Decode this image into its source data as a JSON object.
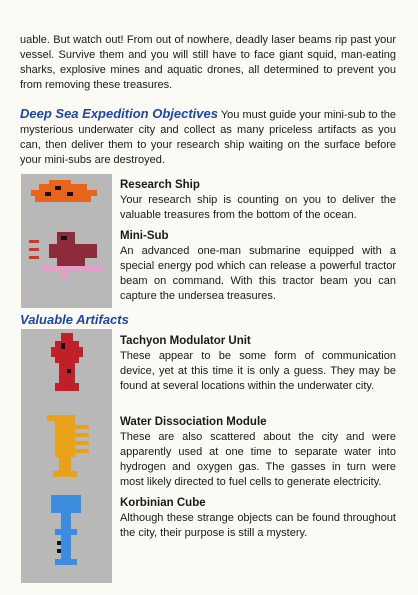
{
  "intro_text": "uable. But watch out! From out of nowhere, deadly laser beams rip past your vessel. Survive them and you will still have to face giant squid, man-eating sharks, explosive mines and aquatic drones, all determined to prevent you from removing these treasures.",
  "objectives": {
    "heading": "Deep Sea Expedition Objectives",
    "text": "You must guide your mini-sub to the mysterious underwater city and collect as many priceless artifacts as you can, then deliver them to your research ship waiting on the surface before your mini-subs are destroyed."
  },
  "vessels": [
    {
      "title": "Research Ship",
      "text": "Your research ship is counting on you to deliver the valuable treasures from the bottom of the ocean."
    },
    {
      "title": "Mini-Sub",
      "text": "An advanced one-man submarine equipped with a special energy pod which can release a powerful tractor beam on command. With this tractor beam you can capture the undersea treasures."
    }
  ],
  "artifacts_heading": "Valuable Artifacts",
  "artifacts": [
    {
      "title": "Tachyon Modulator Unit",
      "text": "These appear to be some form of communication device, yet at this time it is only a guess. They may be found at several locations within the underwater city."
    },
    {
      "title": "Water Dissociation Module",
      "text": "These are also scattered about the city and were apparently used at one time to separate water into hydrogen and oxygen gas. The gasses in turn were most likely directed to fuel cells to generate electricity."
    },
    {
      "title": "Korbinian Cube",
      "text": "Although these strange objects can be found throughout the city, their purpose is still a mystery."
    }
  ],
  "colors": {
    "heading_blue": "#1d46a8",
    "ship_orange": "#e8641a",
    "sub_maroon": "#8c2b3c",
    "tachyon_red": "#c0202a",
    "module_orange": "#e8a21a",
    "cube_blue": "#3c8ce0"
  }
}
